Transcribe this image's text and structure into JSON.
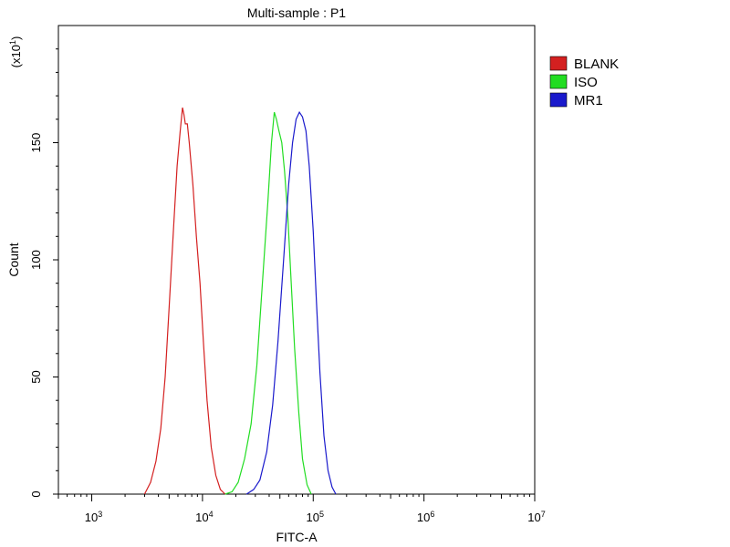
{
  "chart_data": {
    "type": "line",
    "title": "Multi-sample : P1",
    "xlabel": "FITC-A",
    "ylabel": "Count",
    "y_multiplier_label": "(x10",
    "y_multiplier_exponent": "1",
    "y_multiplier_close": ")",
    "x_scale": "log",
    "xlim": [
      500,
      10000000
    ],
    "ylim": [
      0,
      200
    ],
    "grid": false,
    "legend_position": "right",
    "x_ticks": [
      {
        "value": 1000,
        "base": "10",
        "exp": "3"
      },
      {
        "value": 10000,
        "base": "10",
        "exp": "4"
      },
      {
        "value": 100000,
        "base": "10",
        "exp": "5"
      },
      {
        "value": 1000000,
        "base": "10",
        "exp": "6"
      },
      {
        "value": 10000000,
        "base": "10",
        "exp": "7"
      }
    ],
    "y_ticks": [
      {
        "value": 0,
        "label": "0"
      },
      {
        "value": 50,
        "label": "50"
      },
      {
        "value": 100,
        "label": "100"
      },
      {
        "value": 150,
        "label": "150"
      }
    ],
    "series": [
      {
        "name": "BLANK",
        "color": "#d42020",
        "points": [
          [
            3000,
            0
          ],
          [
            3400,
            5
          ],
          [
            3800,
            14
          ],
          [
            4200,
            28
          ],
          [
            4600,
            50
          ],
          [
            5000,
            80
          ],
          [
            5500,
            115
          ],
          [
            5900,
            140
          ],
          [
            6300,
            155
          ],
          [
            6600,
            165
          ],
          [
            6800,
            162
          ],
          [
            7000,
            158
          ],
          [
            7300,
            158
          ],
          [
            7600,
            150
          ],
          [
            8200,
            132
          ],
          [
            8800,
            110
          ],
          [
            9500,
            90
          ],
          [
            10200,
            65
          ],
          [
            11000,
            40
          ],
          [
            12000,
            20
          ],
          [
            13200,
            8
          ],
          [
            14500,
            2
          ],
          [
            16000,
            0
          ]
        ]
      },
      {
        "name": "ISO",
        "color": "#22dd22",
        "points": [
          [
            16000,
            0
          ],
          [
            18500,
            1
          ],
          [
            21000,
            5
          ],
          [
            24000,
            15
          ],
          [
            27500,
            30
          ],
          [
            31000,
            55
          ],
          [
            35000,
            92
          ],
          [
            39000,
            125
          ],
          [
            42000,
            150
          ],
          [
            44500,
            163
          ],
          [
            46500,
            160
          ],
          [
            49000,
            155
          ],
          [
            52000,
            150
          ],
          [
            55000,
            138
          ],
          [
            59000,
            118
          ],
          [
            63000,
            92
          ],
          [
            68000,
            62
          ],
          [
            74000,
            35
          ],
          [
            80000,
            15
          ],
          [
            88000,
            4
          ],
          [
            96000,
            0
          ]
        ]
      },
      {
        "name": "MR1",
        "color": "#1a1acc",
        "points": [
          [
            25000,
            0
          ],
          [
            29000,
            2
          ],
          [
            33000,
            6
          ],
          [
            38000,
            18
          ],
          [
            43000,
            38
          ],
          [
            48000,
            65
          ],
          [
            54000,
            100
          ],
          [
            60000,
            132
          ],
          [
            65000,
            150
          ],
          [
            70000,
            160
          ],
          [
            75000,
            163
          ],
          [
            80000,
            161
          ],
          [
            86000,
            155
          ],
          [
            92000,
            140
          ],
          [
            100000,
            112
          ],
          [
            107000,
            82
          ],
          [
            115000,
            52
          ],
          [
            125000,
            25
          ],
          [
            136000,
            10
          ],
          [
            148000,
            3
          ],
          [
            160000,
            0
          ]
        ]
      }
    ]
  }
}
